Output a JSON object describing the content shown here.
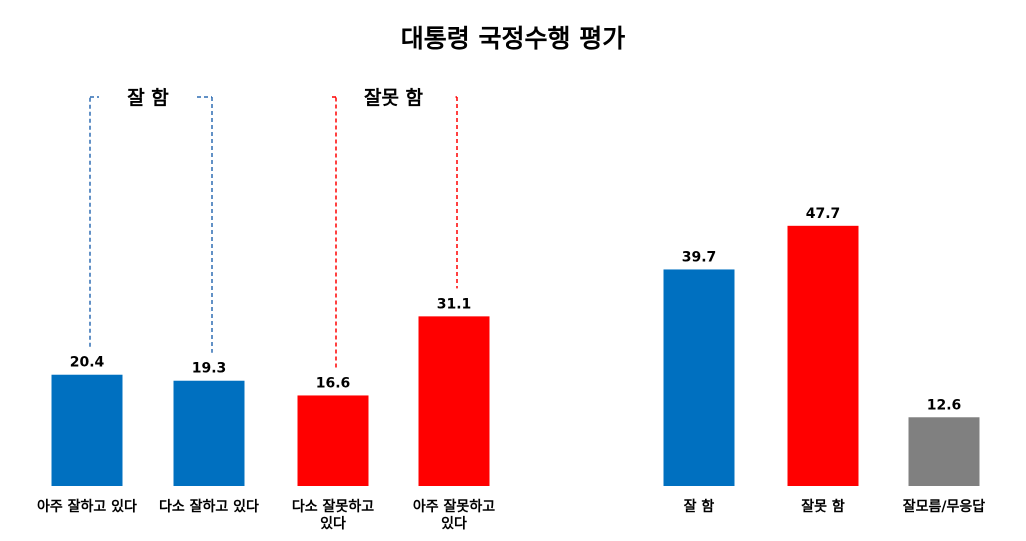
{
  "chart_data": {
    "type": "bar",
    "title": "대통령 국정수행 평가",
    "ylim": [
      0,
      55
    ],
    "grid": false,
    "groups": [
      {
        "categories": [
          [
            "아주 잘하고 있다"
          ],
          [
            "다소 잘하고 있다"
          ],
          [
            "다소 잘못하고",
            "있다"
          ],
          [
            "아주 잘못하고",
            "있다"
          ]
        ],
        "values": [
          20.4,
          19.3,
          16.6,
          31.1
        ],
        "colors": [
          "#0070C0",
          "#0070C0",
          "#FF0000",
          "#FF0000"
        ]
      },
      {
        "categories": [
          [
            "잘 함"
          ],
          [
            "잘못 함"
          ],
          [
            "잘모름/무응답"
          ]
        ],
        "values": [
          39.7,
          47.7,
          12.6
        ],
        "colors": [
          "#0070C0",
          "#FF0000",
          "#808080"
        ]
      }
    ],
    "brackets": [
      {
        "label": "잘 함",
        "color": "#2E6DB4",
        "bars": [
          0,
          1
        ]
      },
      {
        "label": "잘못 함",
        "color": "#FF0000",
        "bars": [
          2,
          3
        ]
      }
    ]
  }
}
